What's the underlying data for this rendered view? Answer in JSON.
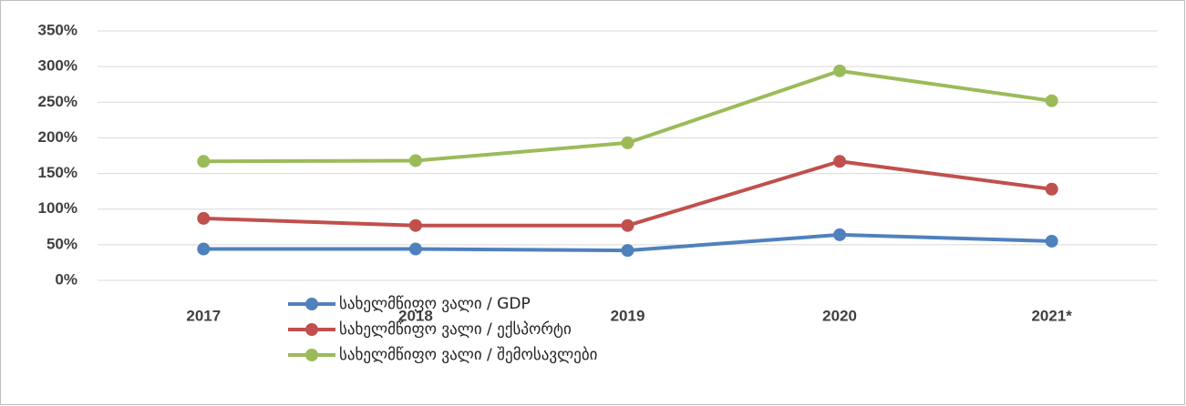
{
  "chart_data": {
    "type": "line",
    "categories": [
      "2017",
      "2018",
      "2019",
      "2020",
      "2021*"
    ],
    "series": [
      {
        "name": "სახელმწიფო ვალი / GDP",
        "color": "#4f81bd",
        "values": [
          44,
          44,
          42,
          64,
          55
        ]
      },
      {
        "name": "სახელმწიფო ვალი / ექსპორტი",
        "color": "#c0504d",
        "values": [
          87,
          77,
          77,
          167,
          128
        ]
      },
      {
        "name": "სახელმწიფო ვალი / შემოსავლები",
        "color": "#9bbb59",
        "values": [
          167,
          168,
          193,
          294,
          252
        ]
      }
    ],
    "ylim": [
      0,
      350
    ],
    "yticks": [
      {
        "value": 0,
        "label": "0%"
      },
      {
        "value": 50,
        "label": "50%"
      },
      {
        "value": 100,
        "label": "100%"
      },
      {
        "value": 150,
        "label": "150%"
      },
      {
        "value": 200,
        "label": "200%"
      },
      {
        "value": 250,
        "label": "250%"
      },
      {
        "value": 300,
        "label": "300%"
      },
      {
        "value": 350,
        "label": "350%"
      }
    ],
    "grid": true,
    "legend": "bottom"
  }
}
